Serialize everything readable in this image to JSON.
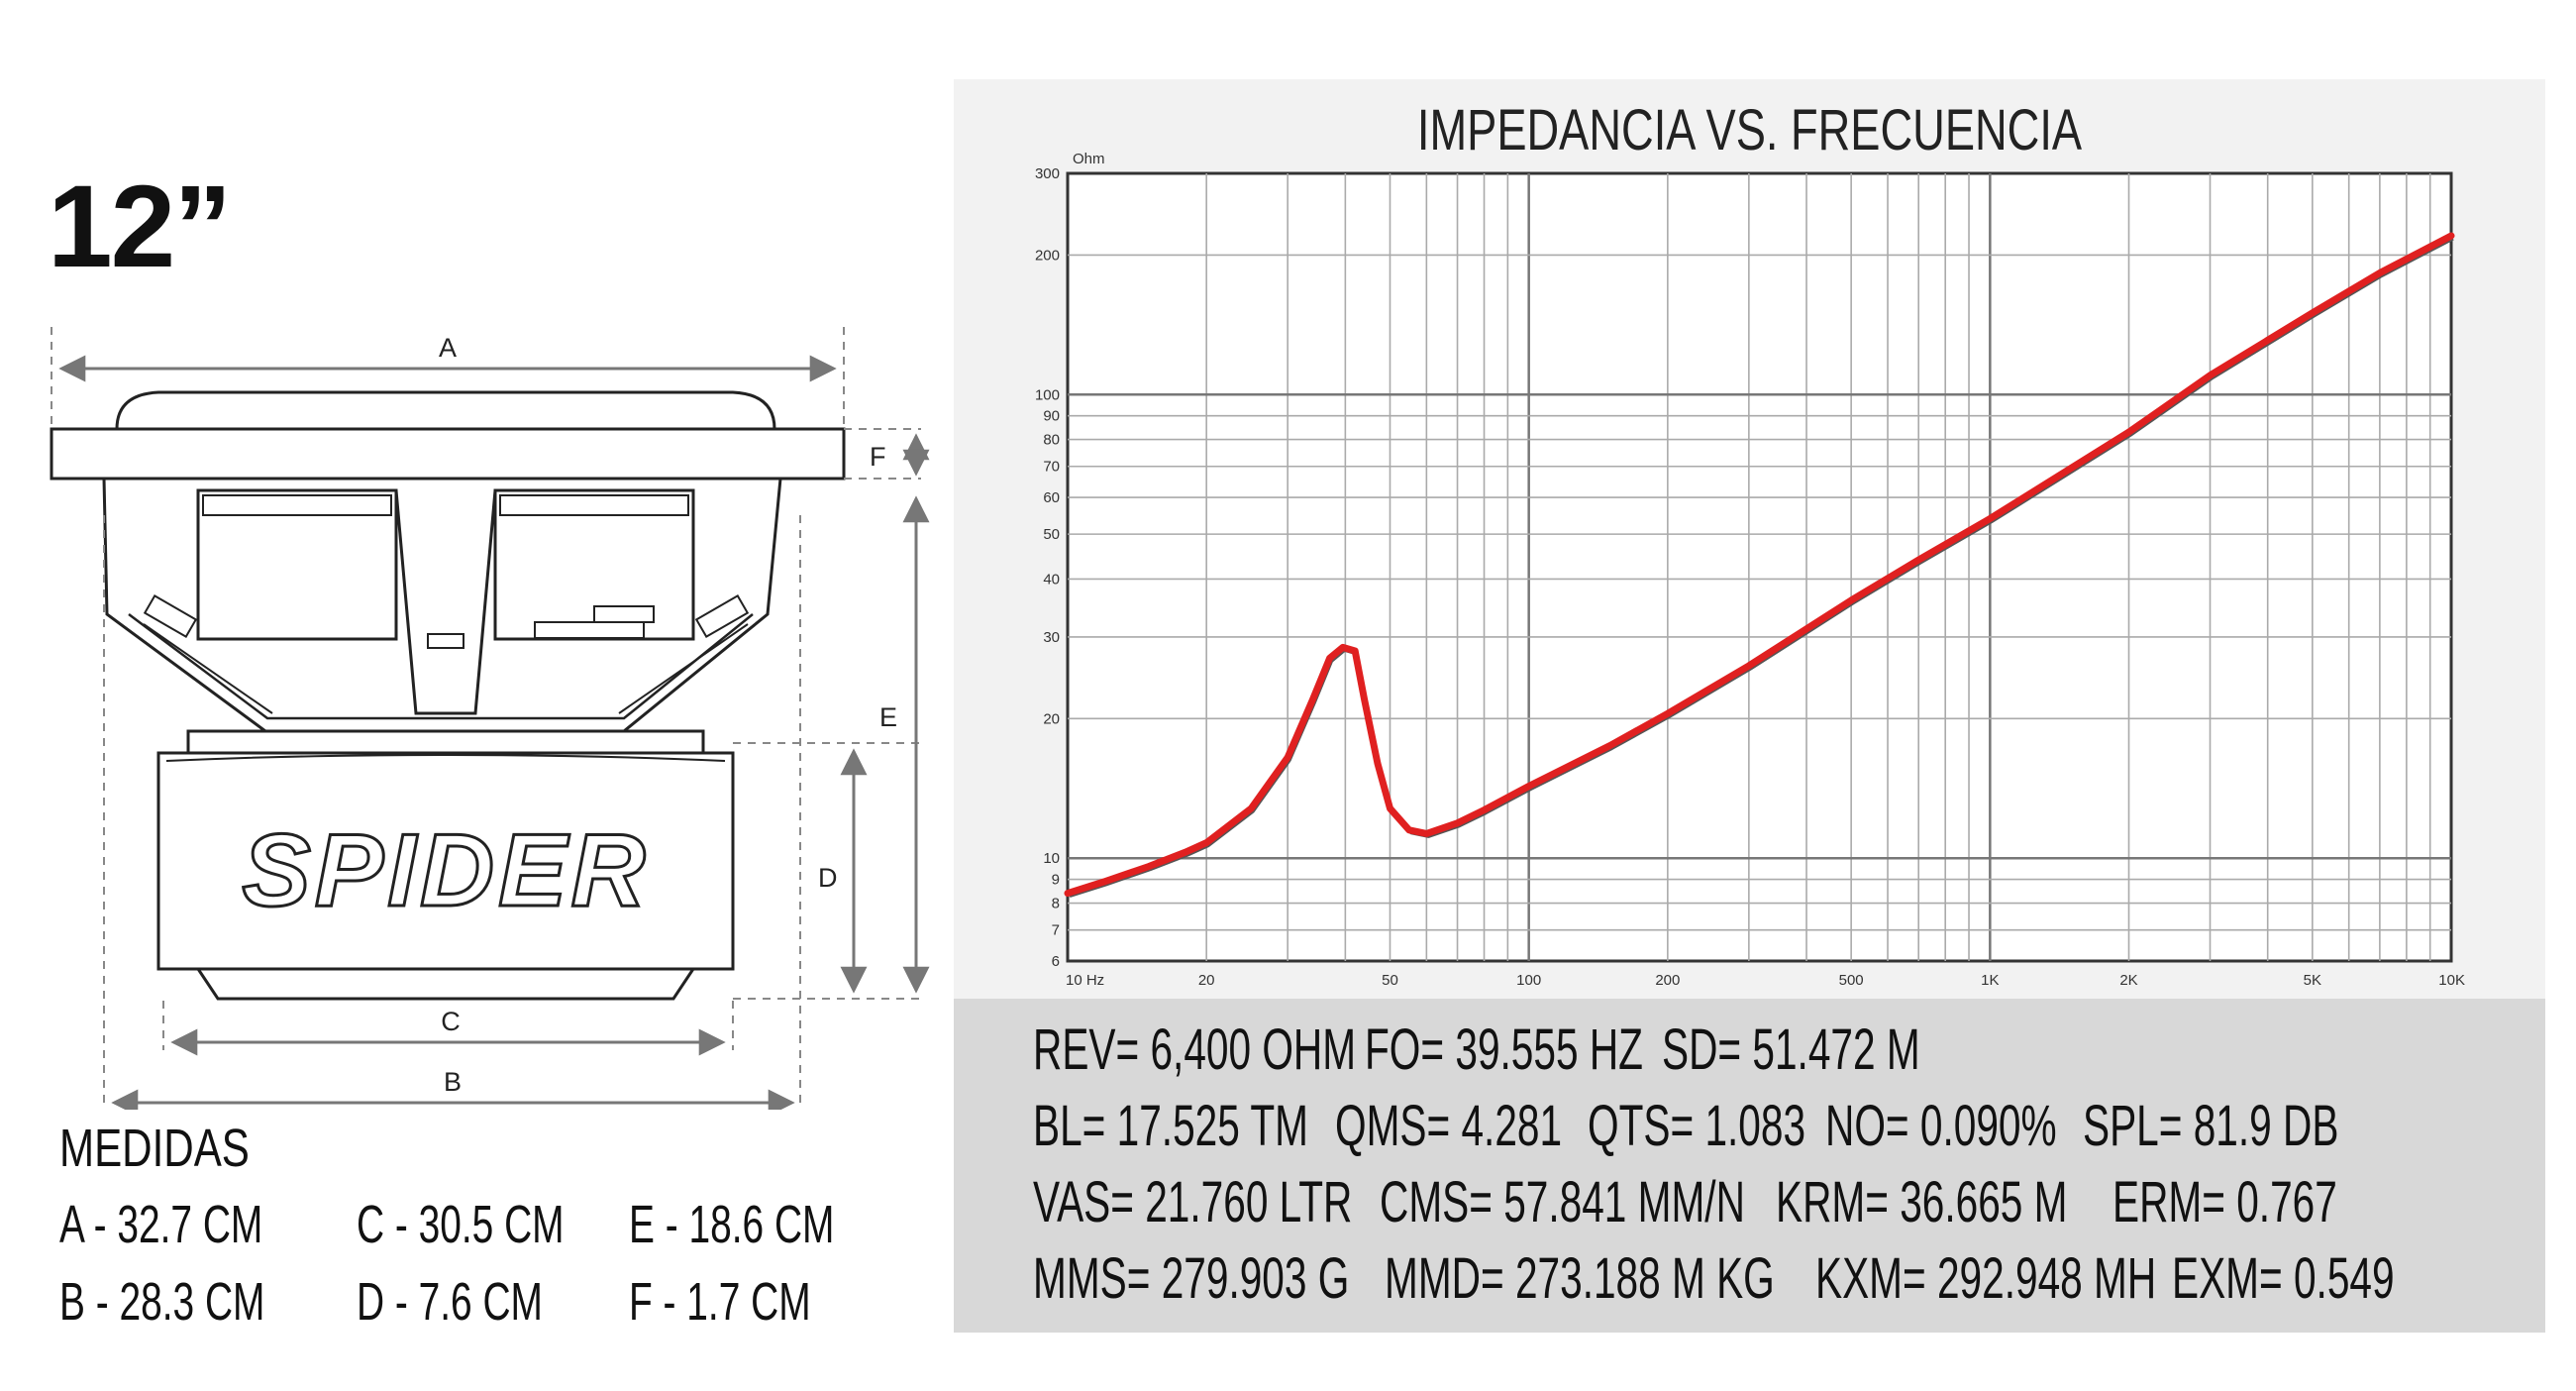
{
  "size_label": "12”",
  "diagram": {
    "labels": {
      "a": "A",
      "b": "B",
      "c": "C",
      "d": "D",
      "e": "E",
      "f": "F"
    },
    "brand": "SPIDER"
  },
  "measurements": {
    "title": "MEDIDAS",
    "items": [
      {
        "key": "a",
        "text": "A - 32.7 CM"
      },
      {
        "key": "b",
        "text": "B - 28.3 CM"
      },
      {
        "key": "c",
        "text": "C - 30.5 CM"
      },
      {
        "key": "d",
        "text": "D - 7.6 CM"
      },
      {
        "key": "e",
        "text": "E - 18.6 CM"
      },
      {
        "key": "f",
        "text": "F - 1.7 CM"
      }
    ]
  },
  "chart_data": {
    "type": "line",
    "title": "IMPEDANCIA VS. FRECUENCIA",
    "ylabel": "Ohm",
    "xscale": "log",
    "yscale": "log",
    "xlim": [
      10,
      10000
    ],
    "ylim": [
      6,
      300
    ],
    "grid": true,
    "x_ticks": [
      {
        "value": 10,
        "label": "10  Hz"
      },
      {
        "value": 20,
        "label": "20"
      },
      {
        "value": 50,
        "label": "50"
      },
      {
        "value": 100,
        "label": "100"
      },
      {
        "value": 200,
        "label": "200"
      },
      {
        "value": 500,
        "label": "500"
      },
      {
        "value": 1000,
        "label": "1K"
      },
      {
        "value": 2000,
        "label": "2K"
      },
      {
        "value": 5000,
        "label": "5K"
      },
      {
        "value": 10000,
        "label": "10K"
      }
    ],
    "y_ticks": [
      {
        "value": 300,
        "label": "300"
      },
      {
        "value": 200,
        "label": "200"
      },
      {
        "value": 100,
        "label": "100"
      },
      {
        "value": 90,
        "label": "90"
      },
      {
        "value": 80,
        "label": "80"
      },
      {
        "value": 70,
        "label": "70"
      },
      {
        "value": 60,
        "label": "60"
      },
      {
        "value": 50,
        "label": "50"
      },
      {
        "value": 40,
        "label": "40"
      },
      {
        "value": 30,
        "label": "30"
      },
      {
        "value": 20,
        "label": "20"
      },
      {
        "value": 10,
        "label": "10"
      },
      {
        "value": 9,
        "label": "9"
      },
      {
        "value": 8,
        "label": "8"
      },
      {
        "value": 7,
        "label": "7"
      },
      {
        "value": 6,
        "label": "6"
      }
    ],
    "series": [
      {
        "color": "#e02020",
        "x": [
          10,
          12,
          15,
          18,
          20,
          25,
          30,
          34,
          37,
          39.5,
          42,
          44,
          47,
          50,
          55,
          60,
          70,
          80,
          100,
          150,
          200,
          300,
          500,
          700,
          1000,
          2000,
          3000,
          5000,
          7000,
          10000
        ],
        "y": [
          8.4,
          8.9,
          9.6,
          10.3,
          10.8,
          12.8,
          16.5,
          22,
          27,
          28.5,
          28,
          22,
          16,
          12.8,
          11.5,
          11.3,
          11.9,
          12.7,
          14.3,
          17.5,
          20.5,
          26,
          36,
          44,
          54,
          83,
          110,
          150,
          183,
          220
        ]
      }
    ]
  },
  "parameters": {
    "rows": [
      [
        "REV= 6,400 OHM",
        "FO= 39.555 HZ",
        "SD= 51.472 M"
      ],
      [
        "BL= 17.525 TM",
        "QMS= 4.281",
        "QTS= 1.083",
        "NO= 0.090%",
        "SPL= 81.9 DB"
      ],
      [
        "VAS= 21.760 LTR",
        "CMS= 57.841 MM/N",
        "KRM= 36.665 M",
        "ERM= 0.767"
      ],
      [
        "MMS= 279.903 G",
        "MMD= 273.188 M KG",
        "KXM= 292.948 MH",
        "EXM= 0.549"
      ]
    ]
  },
  "colors": {
    "curve": "#e02020",
    "panel": "#f2f2f2",
    "params_bg": "#d8d8d8"
  }
}
